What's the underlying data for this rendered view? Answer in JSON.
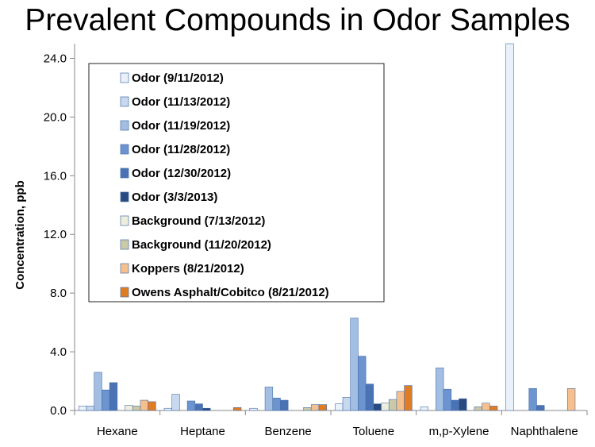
{
  "chart_data": {
    "type": "bar",
    "title": "Prevalent Compounds in Odor Samples",
    "xlabel": "",
    "ylabel": "Concentration, ppb",
    "ylim": [
      0,
      25
    ],
    "yticks": [
      "0.0",
      "4.0",
      "8.0",
      "12.0",
      "16.0",
      "20.0",
      "24.0"
    ],
    "ytick_values": [
      0,
      4,
      8,
      12,
      16,
      20,
      24
    ],
    "grid": false,
    "legend_position": "top-left",
    "categories": [
      "Hexane",
      "Heptane",
      "Benzene",
      "Toluene",
      "m,p-Xylene",
      "Naphthalene"
    ],
    "series": [
      {
        "name": "Odor (9/11/2012)",
        "color": "#eaf1fb",
        "values": [
          0.3,
          0.15,
          0.15,
          0.45,
          0.25,
          25.0
        ]
      },
      {
        "name": "Odor (11/13/2012)",
        "color": "#c7d8ef",
        "values": [
          0.3,
          1.1,
          null,
          0.9,
          null,
          null
        ]
      },
      {
        "name": "Odor (11/19/2012)",
        "color": "#a3bee3",
        "values": [
          2.6,
          null,
          1.6,
          6.3,
          2.9,
          null
        ]
      },
      {
        "name": "Odor (11/28/2012)",
        "color": "#6b94d0",
        "values": [
          1.4,
          0.65,
          0.85,
          3.7,
          1.45,
          1.5
        ]
      },
      {
        "name": "Odor (12/30/2012)",
        "color": "#4a73b5",
        "values": [
          1.9,
          0.45,
          0.7,
          1.8,
          0.7,
          0.35
        ]
      },
      {
        "name": "Odor (3/3/2013)",
        "color": "#284a80",
        "values": [
          null,
          0.15,
          null,
          0.45,
          0.8,
          null
        ]
      },
      {
        "name": "Background (7/13/2012)",
        "color": "#eeeedd",
        "values": [
          0.35,
          null,
          null,
          0.5,
          null,
          null
        ]
      },
      {
        "name": "Background (11/20/2012)",
        "color": "#ccc9a8",
        "values": [
          0.3,
          null,
          0.2,
          0.75,
          0.25,
          null
        ]
      },
      {
        "name": "Koppers (8/21/2012)",
        "color": "#f6c08d",
        "values": [
          0.7,
          null,
          0.4,
          1.3,
          0.5,
          1.5
        ]
      },
      {
        "name": "Owens Asphalt/Cobitco (8/21/2012)",
        "color": "#e07c22",
        "values": [
          0.6,
          0.2,
          0.4,
          1.7,
          0.3,
          null
        ]
      }
    ]
  }
}
